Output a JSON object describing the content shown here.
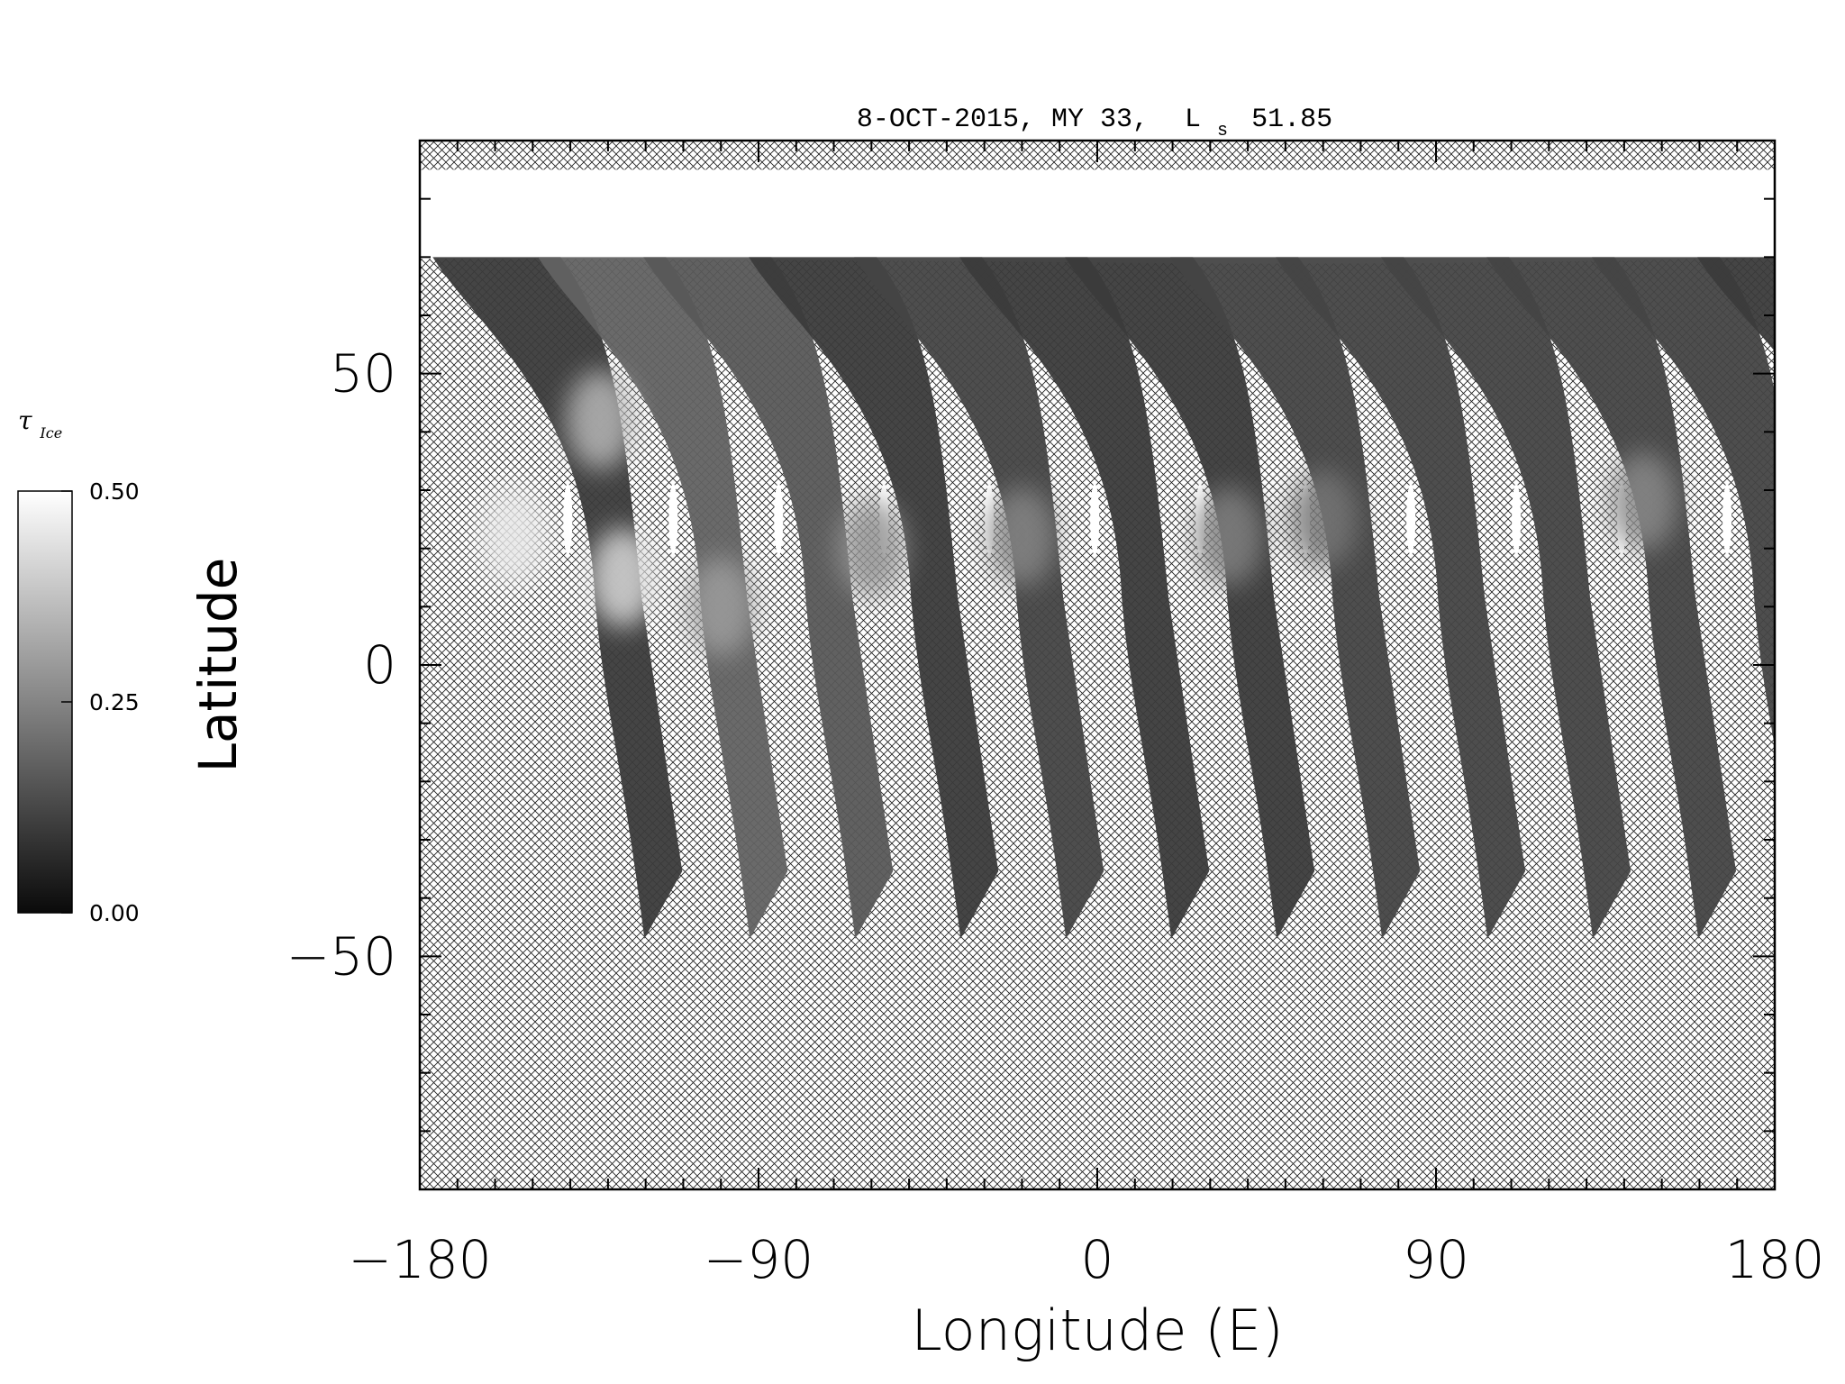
{
  "chart_data": {
    "type": "heatmap",
    "title": "8-OCT-2015, MY 33,",
    "title_ls_symbol": "L",
    "title_ls_sub": "s",
    "title_ls_value": "51.85",
    "xlabel": "Longitude (E)",
    "ylabel": "Latitude",
    "xlim": [
      -180,
      180
    ],
    "ylim": [
      -90,
      90
    ],
    "x_ticks": [
      -180,
      -90,
      0,
      90,
      180
    ],
    "y_ticks": [
      50,
      0,
      -50
    ],
    "x_tick_labels": [
      "−180",
      "−90",
      "0",
      "90",
      "180"
    ],
    "y_tick_labels": [
      "50",
      "0",
      "−50"
    ],
    "x_minor_step": 10,
    "y_minor_step": 10,
    "colorbar": {
      "label": "τ",
      "label_sub": "Ice",
      "min": 0.0,
      "max": 0.5,
      "ticks": [
        0.5,
        0.25,
        0.0
      ],
      "tick_labels": [
        "0.50",
        "0.25",
        "0.00"
      ],
      "colormap": "grayscale",
      "low_color": "#0a0a0a",
      "high_color": "#ffffff"
    },
    "polar_cap": {
      "lat_bottom": 70,
      "lat_top": 85,
      "opacity": 0.5
    },
    "swaths": [
      {
        "lon_left": -167,
        "lat_top": 70,
        "lat_bottom": -47,
        "mean_opacity": 0.1
      },
      {
        "lon_left": -139,
        "lat_top": 70,
        "lat_bottom": -47,
        "mean_opacity": 0.18
      },
      {
        "lon_left": -111,
        "lat_top": 70,
        "lat_bottom": -47,
        "mean_opacity": 0.16
      },
      {
        "lon_left": -83,
        "lat_top": 70,
        "lat_bottom": -47,
        "mean_opacity": 0.1
      },
      {
        "lon_left": -55,
        "lat_top": 70,
        "lat_bottom": -47,
        "mean_opacity": 0.12
      },
      {
        "lon_left": -27,
        "lat_top": 70,
        "lat_bottom": -47,
        "mean_opacity": 0.1
      },
      {
        "lon_left": 1,
        "lat_top": 70,
        "lat_bottom": -47,
        "mean_opacity": 0.1
      },
      {
        "lon_left": 29,
        "lat_top": 70,
        "lat_bottom": -47,
        "mean_opacity": 0.12
      },
      {
        "lon_left": 57,
        "lat_top": 70,
        "lat_bottom": -47,
        "mean_opacity": 0.12
      },
      {
        "lon_left": 85,
        "lat_top": 70,
        "lat_bottom": -47,
        "mean_opacity": 0.12
      },
      {
        "lon_left": 113,
        "lat_top": 70,
        "lat_bottom": -47,
        "mean_opacity": 0.12
      },
      {
        "lon_left": 141,
        "lat_top": 70,
        "lat_bottom": -47,
        "mean_opacity": 0.12
      },
      {
        "lon_left": 169,
        "lat_top": 70,
        "lat_bottom": -23,
        "mean_opacity": 0.1
      }
    ],
    "clouds": [
      {
        "lon": -155,
        "lat": 22,
        "opacity": 0.45
      },
      {
        "lon": -132,
        "lat": 42,
        "opacity": 0.35
      },
      {
        "lon": -126,
        "lat": 15,
        "opacity": 0.42
      },
      {
        "lon": -100,
        "lat": 10,
        "opacity": 0.3
      },
      {
        "lon": -60,
        "lat": 20,
        "opacity": 0.28
      },
      {
        "lon": -20,
        "lat": 22,
        "opacity": 0.25
      },
      {
        "lon": 35,
        "lat": 22,
        "opacity": 0.24
      },
      {
        "lon": 60,
        "lat": 25,
        "opacity": 0.22
      },
      {
        "lon": 145,
        "lat": 28,
        "opacity": 0.26
      }
    ]
  }
}
